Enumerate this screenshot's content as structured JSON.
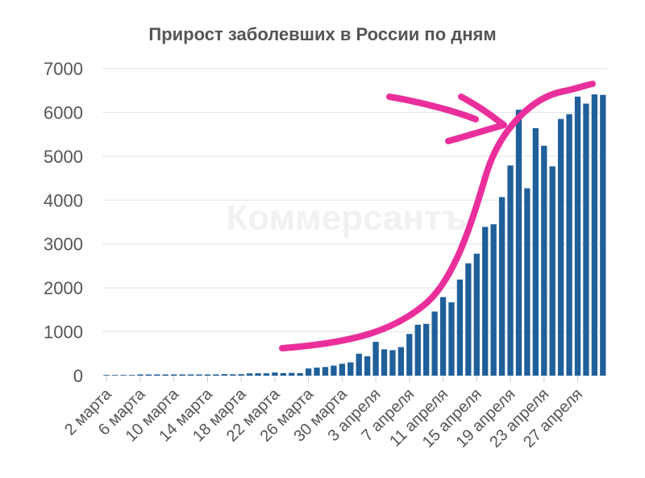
{
  "chart_data": {
    "type": "bar",
    "title": "Прирост заболевших в России по дням",
    "watermark": "Коммерсантъ",
    "xlabel": "",
    "ylabel": "",
    "ylim": [
      0,
      7000
    ],
    "y_ticks": [
      0,
      1000,
      2000,
      3000,
      4000,
      5000,
      6000,
      7000
    ],
    "x_tick_labels": [
      "2 марта",
      "6 марта",
      "10 марта",
      "14 марта",
      "18 марта",
      "22 марта",
      "26 марта",
      "30 марта",
      "3 апреля",
      "7 апреля",
      "11 апреля",
      "15 апреля",
      "19 апреля",
      "23 апреля",
      "27 апреля"
    ],
    "grid": true,
    "colors": {
      "bar": "#1f5f9a",
      "annotation": "#ea2f9c",
      "grid": "#e3e3e3",
      "text": "#555555"
    },
    "annotation": "pink hand-drawn curve and arrow",
    "categories": [
      "2 марта",
      "3 марта",
      "4 марта",
      "5 марта",
      "6 марта",
      "7 марта",
      "8 марта",
      "9 марта",
      "10 марта",
      "11 марта",
      "12 марта",
      "13 марта",
      "14 марта",
      "15 марта",
      "16 марта",
      "17 марта",
      "18 марта",
      "19 марта",
      "20 марта",
      "21 марта",
      "22 марта",
      "23 марта",
      "24 марта",
      "25 марта",
      "26 марта",
      "27 марта",
      "28 марта",
      "29 марта",
      "30 марта",
      "31 марта",
      "1 апреля",
      "2 апреля",
      "3 апреля",
      "4 апреля",
      "5 апреля",
      "6 апреля",
      "7 апреля",
      "8 апреля",
      "9 апреля",
      "10 апреля",
      "11 апреля",
      "12 апреля",
      "13 апреля",
      "14 апреля",
      "15 апреля",
      "16 апреля",
      "17 апреля",
      "18 апреля",
      "19 апреля",
      "20 апреля",
      "21 апреля",
      "22 апреля",
      "23 апреля",
      "24 апреля",
      "25 апреля",
      "26 апреля",
      "27 апреля",
      "28 апреля",
      "29 апреля",
      "30 апреля"
    ],
    "values": [
      0,
      0,
      0,
      0,
      1,
      5,
      3,
      4,
      3,
      7,
      8,
      6,
      14,
      14,
      34,
      30,
      33,
      52,
      54,
      53,
      71,
      57,
      62,
      57,
      163,
      182,
      196,
      228,
      270,
      302,
      500,
      440,
      770,
      600,
      580,
      650,
      950,
      1160,
      1180,
      1460,
      1790,
      1670,
      2190,
      2560,
      2780,
      3390,
      3450,
      4070,
      4790,
      6060,
      4270,
      5640,
      5240,
      4770,
      5850,
      5960,
      6360,
      6200,
      6410,
      6400
    ]
  }
}
